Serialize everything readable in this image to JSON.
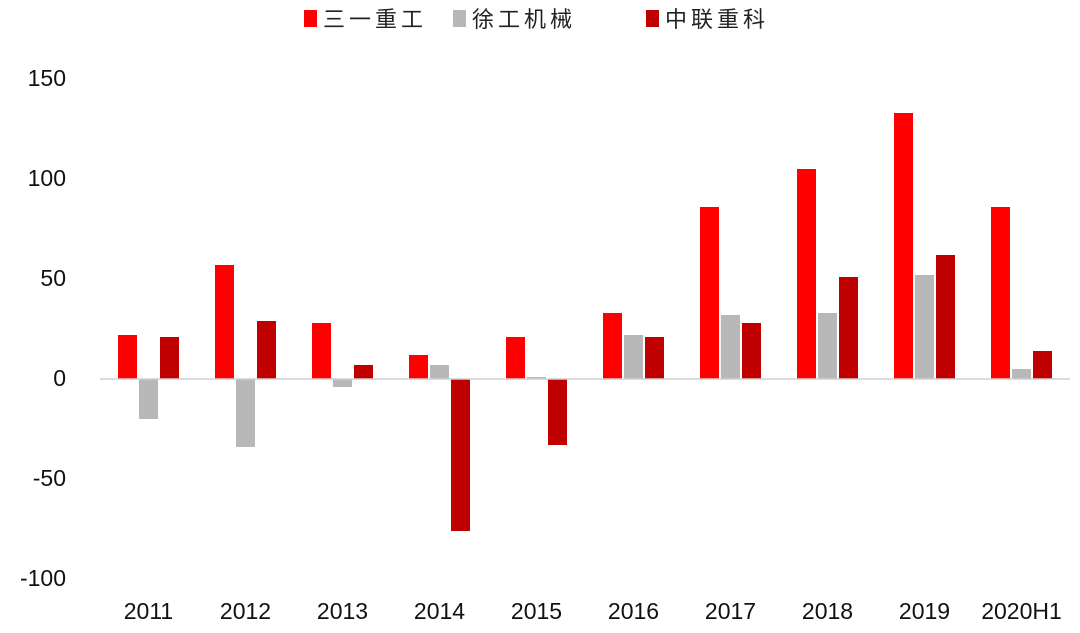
{
  "chart_data": {
    "type": "bar",
    "title": "",
    "xlabel": "",
    "ylabel": "",
    "categories": [
      "2011",
      "2012",
      "2013",
      "2014",
      "2015",
      "2016",
      "2017",
      "2018",
      "2019",
      "2020H1"
    ],
    "series": [
      {
        "name": "三一重工",
        "color": "#ff0000",
        "values": [
          22,
          57,
          28,
          12,
          21,
          33,
          86,
          105,
          133,
          86
        ]
      },
      {
        "name": "徐工机械",
        "color": "#b8b8b8",
        "values": [
          -20,
          -34,
          -4,
          7,
          1,
          22,
          32,
          33,
          52,
          5
        ]
      },
      {
        "name": "中联重科",
        "color": "#c00000",
        "values": [
          21,
          29,
          7,
          -76,
          -33,
          21,
          28,
          51,
          62,
          14
        ]
      }
    ],
    "yticks": [
      "150",
      "100",
      "50",
      "0",
      "-50",
      "-100"
    ],
    "ylim": [
      -100,
      150
    ],
    "grid": false,
    "legend_position": "top-center"
  }
}
